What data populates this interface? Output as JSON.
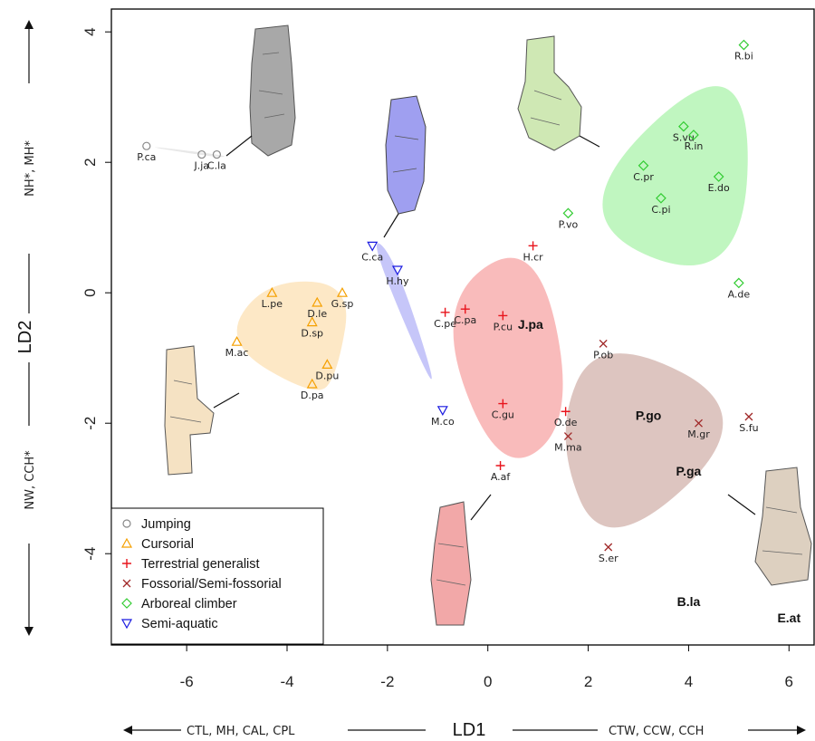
{
  "chart_data": {
    "type": "scatter",
    "xlabel": "LD1",
    "ylabel": "LD2",
    "xlim": [
      -7.5,
      6.5
    ],
    "ylim": [
      -5.4,
      4.35
    ],
    "x_ticks": [
      -6,
      -4,
      -2,
      0,
      2,
      4,
      6
    ],
    "y_ticks": [
      4,
      2,
      0,
      -2,
      -4
    ],
    "x_axis_variables": {
      "negative": "CTL, MH, CAL, CPL",
      "positive": "CTW, CCW, CCH"
    },
    "y_axis_variables": {
      "negative": "NW, CCH*",
      "positive": "NH*, MH*"
    },
    "legend": {
      "position": "bottom-left",
      "entries": [
        {
          "label": "Jumping",
          "marker": "circle",
          "color": "#888888"
        },
        {
          "label": "Cursorial",
          "marker": "triangle-up",
          "color": "#F5A000"
        },
        {
          "label": "Terrestrial generalist",
          "marker": "plus",
          "color": "#E8141C"
        },
        {
          "label": "Fossorial/Semi-fossorial",
          "marker": "cross",
          "color": "#A02828"
        },
        {
          "label": "Arboreal climber",
          "marker": "diamond",
          "color": "#33CC33"
        },
        {
          "label": "Semi-aquatic",
          "marker": "triangle-down",
          "color": "#1A1AE0"
        }
      ]
    },
    "series": [
      {
        "name": "Jumping",
        "color": "#888888",
        "hull_color": "#e6e6e6",
        "points": [
          {
            "label": "P.ca",
            "x": -6.8,
            "y": 2.25
          },
          {
            "label": "J.ja",
            "x": -5.7,
            "y": 2.12
          },
          {
            "label": "C.la",
            "x": -5.4,
            "y": 2.12
          }
        ]
      },
      {
        "name": "Cursorial",
        "color": "#F5A000",
        "hull_color": "#fde6c0",
        "points": [
          {
            "label": "L.pe",
            "x": -4.3,
            "y": 0.0
          },
          {
            "label": "G.sp",
            "x": -2.9,
            "y": 0.0
          },
          {
            "label": "D.le",
            "x": -3.4,
            "y": -0.15
          },
          {
            "label": "D.sp",
            "x": -3.5,
            "y": -0.45
          },
          {
            "label": "M.ac",
            "x": -5.0,
            "y": -0.75
          },
          {
            "label": "D.pu",
            "x": -3.2,
            "y": -1.1
          },
          {
            "label": "D.pa",
            "x": -3.5,
            "y": -1.4
          }
        ]
      },
      {
        "name": "Terrestrial generalist",
        "color": "#E8141C",
        "hull_color": "#f8b4b4",
        "points": [
          {
            "label": "H.cr",
            "x": 0.9,
            "y": 0.72
          },
          {
            "label": "C.pe",
            "x": -0.85,
            "y": -0.3
          },
          {
            "label": "C.pa",
            "x": -0.45,
            "y": -0.25
          },
          {
            "label": "P.cu",
            "x": 0.3,
            "y": -0.35
          },
          {
            "label": "C.gu",
            "x": 0.3,
            "y": -1.7
          },
          {
            "label": "O.de",
            "x": 1.55,
            "y": -1.82
          },
          {
            "label": "A.af",
            "x": 0.25,
            "y": -2.65
          }
        ]
      },
      {
        "name": "Fossorial/Semi-fossorial",
        "color": "#A02828",
        "hull_color": "#d9bfb9",
        "points": [
          {
            "label": "P.ob",
            "x": 2.3,
            "y": -0.78
          },
          {
            "label": "M.ma",
            "x": 1.6,
            "y": -2.2
          },
          {
            "label": "M.gr",
            "x": 4.2,
            "y": -2.0
          },
          {
            "label": "S.fu",
            "x": 5.2,
            "y": -1.9
          },
          {
            "label": "S.er",
            "x": 2.4,
            "y": -3.9
          }
        ]
      },
      {
        "name": "Arboreal climber",
        "color": "#33CC33",
        "hull_color": "#b9f5b9",
        "points": [
          {
            "label": "R.bi",
            "x": 5.1,
            "y": 3.8
          },
          {
            "label": "S.vu",
            "x": 3.9,
            "y": 2.55
          },
          {
            "label": "R.in",
            "x": 4.1,
            "y": 2.42
          },
          {
            "label": "C.pr",
            "x": 3.1,
            "y": 1.95
          },
          {
            "label": "E.do",
            "x": 4.6,
            "y": 1.78
          },
          {
            "label": "C.pi",
            "x": 3.45,
            "y": 1.45
          },
          {
            "label": "P.vo",
            "x": 1.6,
            "y": 1.22
          },
          {
            "label": "A.de",
            "x": 5.0,
            "y": 0.15
          }
        ]
      },
      {
        "name": "Semi-aquatic",
        "color": "#1A1AE0",
        "hull_color": "#c0c0f8",
        "points": [
          {
            "label": "C.ca",
            "x": -2.3,
            "y": 0.72
          },
          {
            "label": "H.hy",
            "x": -1.8,
            "y": 0.35
          },
          {
            "label": "M.co",
            "x": -0.9,
            "y": -1.8
          }
        ]
      }
    ],
    "annotations": [
      {
        "text": "J.pa",
        "x": 0.85,
        "y": -0.55
      },
      {
        "text": "P.go",
        "x": 3.2,
        "y": -1.95
      },
      {
        "text": "P.ga",
        "x": 4.0,
        "y": -2.8
      },
      {
        "text": "B.la",
        "x": 4.0,
        "y": -4.8
      },
      {
        "text": "E.at",
        "x": 6.0,
        "y": -5.05
      }
    ]
  }
}
